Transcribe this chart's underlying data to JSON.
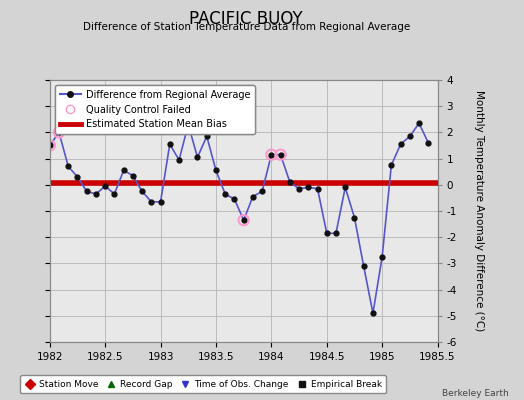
{
  "title": "PACIFIC BUOY",
  "subtitle": "Difference of Station Temperature Data from Regional Average",
  "ylabel": "Monthly Temperature Anomaly Difference (°C)",
  "watermark": "Berkeley Earth",
  "xlim": [
    1982,
    1985.5
  ],
  "ylim": [
    -6,
    4
  ],
  "yticks": [
    -6,
    -5,
    -4,
    -3,
    -2,
    -1,
    0,
    1,
    2,
    3,
    4
  ],
  "xticks": [
    1982,
    1982.5,
    1983,
    1983.5,
    1984,
    1984.5,
    1985,
    1985.5
  ],
  "mean_bias": 0.05,
  "line_color": "#5555cc",
  "line_marker_color": "#111111",
  "bias_color": "#cc0000",
  "qc_color": "#ff99cc",
  "background_color": "#d4d4d4",
  "plot_bg_color": "#e8e8e8",
  "grid_color": "#bbbbbb",
  "x_data": [
    1982.0,
    1982.083,
    1982.167,
    1982.25,
    1982.333,
    1982.417,
    1982.5,
    1982.583,
    1982.667,
    1982.75,
    1982.833,
    1982.917,
    1983.0,
    1983.083,
    1983.167,
    1983.25,
    1983.333,
    1983.417,
    1983.5,
    1983.583,
    1983.667,
    1983.75,
    1983.833,
    1983.917,
    1984.0,
    1984.083,
    1984.167,
    1984.25,
    1984.333,
    1984.417,
    1984.5,
    1984.583,
    1984.667,
    1984.75,
    1984.833,
    1984.917,
    1985.0,
    1985.083,
    1985.167,
    1985.25,
    1985.333,
    1985.417
  ],
  "y_data": [
    1.5,
    2.0,
    0.7,
    0.3,
    -0.25,
    -0.35,
    -0.05,
    -0.35,
    0.55,
    0.35,
    -0.25,
    -0.65,
    -0.65,
    1.55,
    0.95,
    2.3,
    1.05,
    1.85,
    0.55,
    -0.35,
    -0.55,
    -1.35,
    -0.45,
    -0.25,
    1.15,
    1.15,
    0.1,
    -0.15,
    -0.1,
    -0.15,
    -1.85,
    -1.85,
    -0.1,
    -1.25,
    -3.1,
    -4.9,
    -2.75,
    0.75,
    1.55,
    1.85,
    2.35,
    1.6
  ],
  "qc_failed_x": [
    1982.0,
    1982.083,
    1983.75,
    1984.0,
    1984.083
  ],
  "qc_failed_y": [
    1.5,
    2.0,
    -1.35,
    1.15,
    1.15
  ],
  "legend1_items": [
    {
      "label": "Difference from Regional Average",
      "color": "#5555cc",
      "marker": "o",
      "lw": 1.5
    },
    {
      "label": "Quality Control Failed",
      "color": "#ff99cc",
      "marker": "o",
      "lw": 0
    },
    {
      "label": "Estimated Station Mean Bias",
      "color": "#cc0000",
      "marker": "",
      "lw": 3
    }
  ],
  "legend2_items": [
    {
      "label": "Station Move",
      "color": "#cc0000",
      "marker": "D"
    },
    {
      "label": "Record Gap",
      "color": "#006600",
      "marker": "^"
    },
    {
      "label": "Time of Obs. Change",
      "color": "#3333cc",
      "marker": "v"
    },
    {
      "label": "Empirical Break",
      "color": "#111111",
      "marker": "s"
    }
  ]
}
